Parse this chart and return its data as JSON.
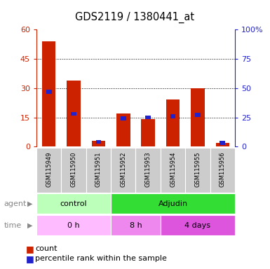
{
  "title": "GDS2119 / 1380441_at",
  "samples": [
    "GSM115949",
    "GSM115950",
    "GSM115951",
    "GSM115952",
    "GSM115953",
    "GSM115954",
    "GSM115955",
    "GSM115956"
  ],
  "count_values": [
    54,
    34,
    3,
    17,
    14,
    24,
    30,
    2
  ],
  "percentile_values": [
    47,
    28,
    4,
    24,
    25,
    26,
    27,
    3
  ],
  "left_ylim": [
    0,
    60
  ],
  "right_ylim": [
    0,
    100
  ],
  "left_yticks": [
    0,
    15,
    30,
    45,
    60
  ],
  "right_yticks": [
    0,
    25,
    50,
    75,
    100
  ],
  "right_yticklabels": [
    "0",
    "25",
    "50",
    "75",
    "100%"
  ],
  "bar_color": "#cc2200",
  "percentile_color": "#2222cc",
  "agent_groups": [
    {
      "label": "control",
      "start": 0,
      "end": 3,
      "color": "#bbffbb"
    },
    {
      "label": "Adjudin",
      "start": 3,
      "end": 8,
      "color": "#33dd33"
    }
  ],
  "time_groups": [
    {
      "label": "0 h",
      "start": 0,
      "end": 3,
      "color": "#ffbbff"
    },
    {
      "label": "8 h",
      "start": 3,
      "end": 5,
      "color": "#ee88ee"
    },
    {
      "label": "4 days",
      "start": 5,
      "end": 8,
      "color": "#dd55dd"
    }
  ],
  "legend_count_label": "count",
  "legend_percentile_label": "percentile rank within the sample",
  "left_axis_color": "#cc2200",
  "right_axis_color": "#2222cc",
  "sample_bg_color": "#cccccc",
  "label_text_color": "#888888"
}
